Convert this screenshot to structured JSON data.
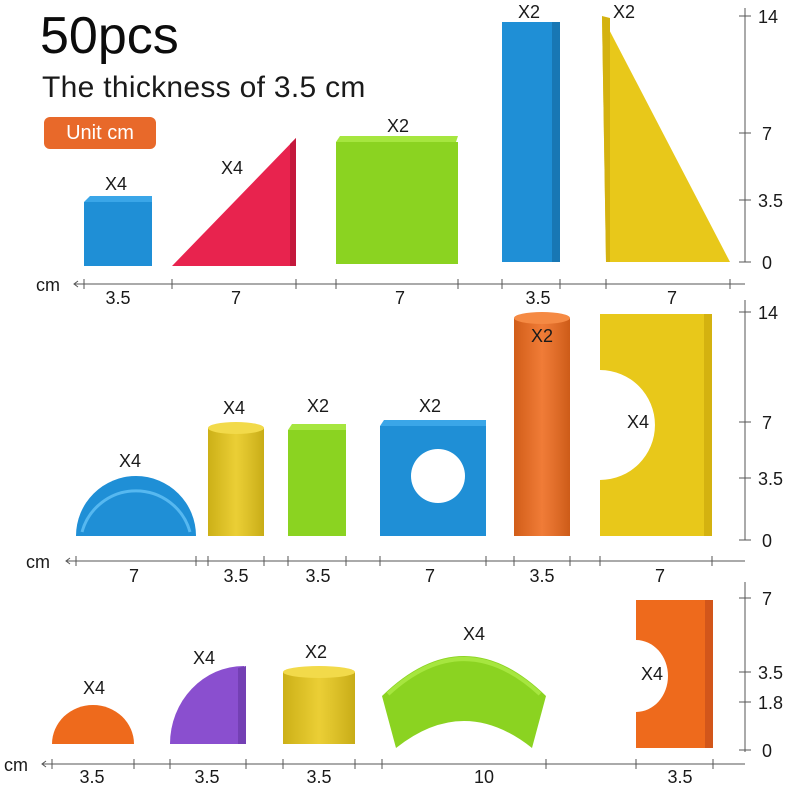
{
  "header": {
    "title": "50pcs",
    "subtitle": "The thickness of 3.5 cm",
    "unit_badge": "Unit cm"
  },
  "colors": {
    "blue": "#1f8fd6",
    "red": "#e8234e",
    "green": "#8bd321",
    "yellow": "#e8c81a",
    "orange": "#ee6a1c",
    "purple": "#8a4fcf",
    "badge": "#e8692a"
  },
  "rows": [
    {
      "unit": "cm",
      "ticks": [
        "14",
        "7",
        "3.5",
        "0"
      ],
      "blocks": [
        {
          "shape": "square-block",
          "color": "blue",
          "qty": "X4",
          "width": "3.5"
        },
        {
          "shape": "triangle-block",
          "color": "red",
          "qty": "X4",
          "width": "7"
        },
        {
          "shape": "square-block",
          "color": "green",
          "qty": "X2",
          "width": "7"
        },
        {
          "shape": "pillar-block",
          "color": "blue",
          "qty": "X2",
          "width": "3.5"
        },
        {
          "shape": "tall-triangle-block",
          "color": "yellow",
          "qty": "X2",
          "width": "7"
        }
      ]
    },
    {
      "unit": "cm",
      "ticks": [
        "14",
        "7",
        "3.5",
        "0"
      ],
      "blocks": [
        {
          "shape": "half-circle-block",
          "color": "blue",
          "qty": "X4",
          "width": "7"
        },
        {
          "shape": "cylinder-block",
          "color": "yellow",
          "qty": "X4",
          "width": "3.5"
        },
        {
          "shape": "rectangle-block",
          "color": "green",
          "qty": "X2",
          "width": "3.5"
        },
        {
          "shape": "square-with-hole-block",
          "color": "blue",
          "qty": "X2",
          "width": "7"
        },
        {
          "shape": "tall-cylinder-block",
          "color": "orange",
          "qty": "X2",
          "width": "3.5"
        },
        {
          "shape": "arch-block",
          "color": "yellow",
          "qty": "X4",
          "width": "7"
        }
      ]
    },
    {
      "unit": "cm",
      "ticks": [
        "7",
        "3.5",
        "1.8",
        "0"
      ],
      "blocks": [
        {
          "shape": "half-circle-block",
          "color": "orange",
          "qty": "X4",
          "width": "3.5"
        },
        {
          "shape": "quarter-circle-block",
          "color": "purple",
          "qty": "X4",
          "width": "3.5"
        },
        {
          "shape": "cylinder-block",
          "color": "yellow",
          "qty": "X2",
          "width": "3.5"
        },
        {
          "shape": "curved-arch-block",
          "color": "green",
          "qty": "X4",
          "width": "10"
        },
        {
          "shape": "small-arch-block",
          "color": "orange",
          "qty": "X4",
          "width": "3.5"
        }
      ]
    }
  ]
}
